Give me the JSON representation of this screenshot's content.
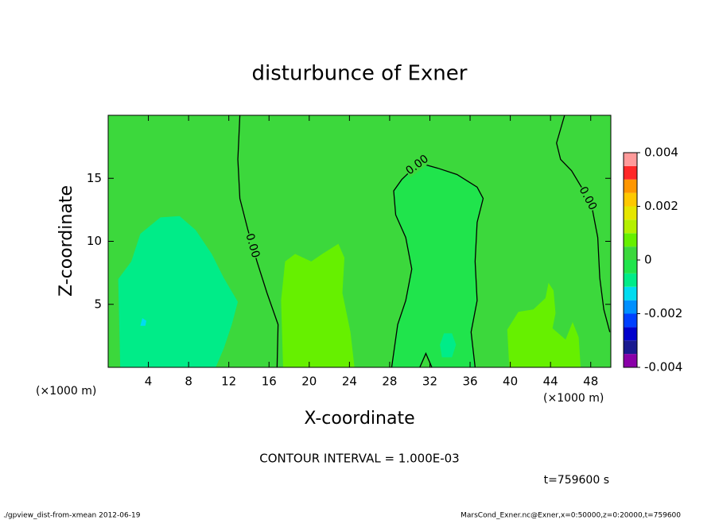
{
  "chart_data": {
    "type": "contour",
    "title": "disturbunce of Exner",
    "xlabel": "X-coordinate",
    "ylabel": "Z-coordinate",
    "x_unit": "(×1000 m)",
    "y_unit": "(×1000 m)",
    "xlim": [
      0,
      50
    ],
    "ylim": [
      0,
      20
    ],
    "xticks": [
      4,
      8,
      12,
      16,
      20,
      24,
      28,
      32,
      36,
      40,
      44,
      48
    ],
    "yticks": [
      5,
      10,
      15
    ],
    "colorbar": {
      "levels": [
        -0.004,
        -0.0035,
        -0.003,
        -0.0025,
        -0.002,
        -0.0015,
        -0.001,
        -0.0005,
        0,
        0.0005,
        0.001,
        0.0015,
        0.002,
        0.0025,
        0.003,
        0.0035,
        0.004
      ],
      "colors": [
        "#8a00a8",
        "#1a1a90",
        "#0000cc",
        "#0040ff",
        "#0090ff",
        "#00dcf0",
        "#00ec88",
        "#20e44c",
        "#3cd83c",
        "#66f000",
        "#b4f000",
        "#e6e600",
        "#ffc800",
        "#ff9600",
        "#ff2828",
        "#ff9a9a"
      ],
      "ticks": [
        -0.004,
        -0.002,
        0,
        0.002,
        0.004
      ]
    },
    "regions": [
      {
        "range": [
          0,
          0.0005
        ],
        "x": [
          0,
          50,
          50,
          0
        ],
        "z": [
          0,
          0,
          20,
          20
        ]
      },
      {
        "range": [
          -0.001,
          -0.0005
        ],
        "x": [
          1.2,
          1,
          2.3,
          3.2,
          5.2,
          7.1,
          8.7,
          10.3,
          11.5,
          12.9,
          12.3,
          11.5,
          10.7
        ],
        "z": [
          0,
          7,
          8.4,
          10.6,
          11.9,
          12,
          10.9,
          9,
          7.1,
          5.2,
          3.4,
          1.5,
          0
        ]
      },
      {
        "range": [
          -0.0015,
          -0.001
        ],
        "x": [
          3.2,
          3.7,
          3.8,
          3.4
        ],
        "z": [
          3.3,
          3.3,
          3.7,
          3.9
        ]
      },
      {
        "range": [
          0.0005,
          0.001
        ],
        "x": [
          17.4,
          17.2,
          17.6,
          18.6,
          20.2,
          21.3,
          22.9,
          23.5,
          23.3,
          24.1,
          24.5
        ],
        "z": [
          0,
          5.3,
          8.4,
          9,
          8.4,
          9,
          9.8,
          8.7,
          5.9,
          2.8,
          0
        ]
      },
      {
        "range": [
          0.0005,
          0.001
        ],
        "x": [
          39.9,
          39.7,
          40.8,
          42.3,
          43.5,
          43.8,
          44.3,
          44.5,
          44.2,
          45.5,
          46.2,
          46.8,
          47
        ],
        "z": [
          0,
          3,
          4.4,
          4.6,
          5.5,
          6.7,
          6.1,
          4.3,
          3.1,
          2.2,
          3.6,
          2.4,
          0
        ]
      },
      {
        "range": [
          -0.0005,
          0
        ],
        "x": [
          28.2,
          28.8,
          29.6,
          30.2,
          29.6,
          28.6,
          28.4,
          29.2,
          30.5,
          31,
          32.8,
          34.7,
          36.7,
          37.3,
          36.7,
          36.5,
          36.7,
          36.1,
          36.5,
          32.2,
          31.6,
          31
        ],
        "z": [
          0,
          3.4,
          5.3,
          7.8,
          10.3,
          12.1,
          14,
          14.9,
          15.9,
          16.2,
          15.8,
          15.3,
          14.3,
          13.4,
          11.5,
          8.4,
          5.3,
          2.8,
          0,
          0,
          1.1,
          0
        ]
      },
      {
        "range": [
          -0.001,
          -0.0005
        ],
        "x": [
          33.2,
          34.2,
          34.6,
          34.2,
          33.4,
          33
        ],
        "z": [
          0.8,
          0.8,
          1.8,
          2.7,
          2.7,
          1.8
        ]
      }
    ],
    "contours": [
      {
        "level": 0,
        "label": "0.00",
        "x": [
          13.1,
          12.9,
          13.1,
          13.9,
          14.8,
          15.8,
          16.9,
          16.8
        ],
        "z": [
          20,
          16.5,
          13.4,
          10.9,
          8.4,
          5.9,
          3.4,
          0
        ]
      },
      {
        "level": 0,
        "label": "0.00",
        "x": [
          28.2,
          28.8,
          29.6,
          30.2,
          29.6,
          28.6,
          28.4,
          29.2,
          30.5,
          31,
          32.8,
          34.7,
          36.7,
          37.3,
          36.7,
          36.5,
          36.7,
          36.1,
          36.5
        ],
        "z": [
          0,
          3.4,
          5.3,
          7.8,
          10.3,
          12.1,
          14,
          14.9,
          15.9,
          16.2,
          15.8,
          15.3,
          14.3,
          13.4,
          11.5,
          8.4,
          5.3,
          2.8,
          0
        ]
      },
      {
        "level": 0,
        "label": "0.00",
        "x": [
          45.4,
          44.6,
          45,
          46.1,
          47.3,
          48.1,
          48.7,
          48.9,
          49.3,
          49.9
        ],
        "z": [
          20,
          17.8,
          16.5,
          15.6,
          14,
          12.8,
          10.3,
          7.1,
          4.6,
          2.8
        ]
      },
      {
        "level": 0,
        "x": [
          31,
          31.6,
          32.2
        ],
        "z": [
          0,
          1.1,
          0
        ]
      }
    ],
    "contour_interval_text": "CONTOUR INTERVAL = 1.000E-03",
    "time_text": "t=759600 s",
    "footer_left": "./gpview_dist-from-xmean  2012-06-19",
    "footer_right": "MarsCond_Exner.nc@Exner,x=0:50000,z=0:20000,t=759600"
  }
}
